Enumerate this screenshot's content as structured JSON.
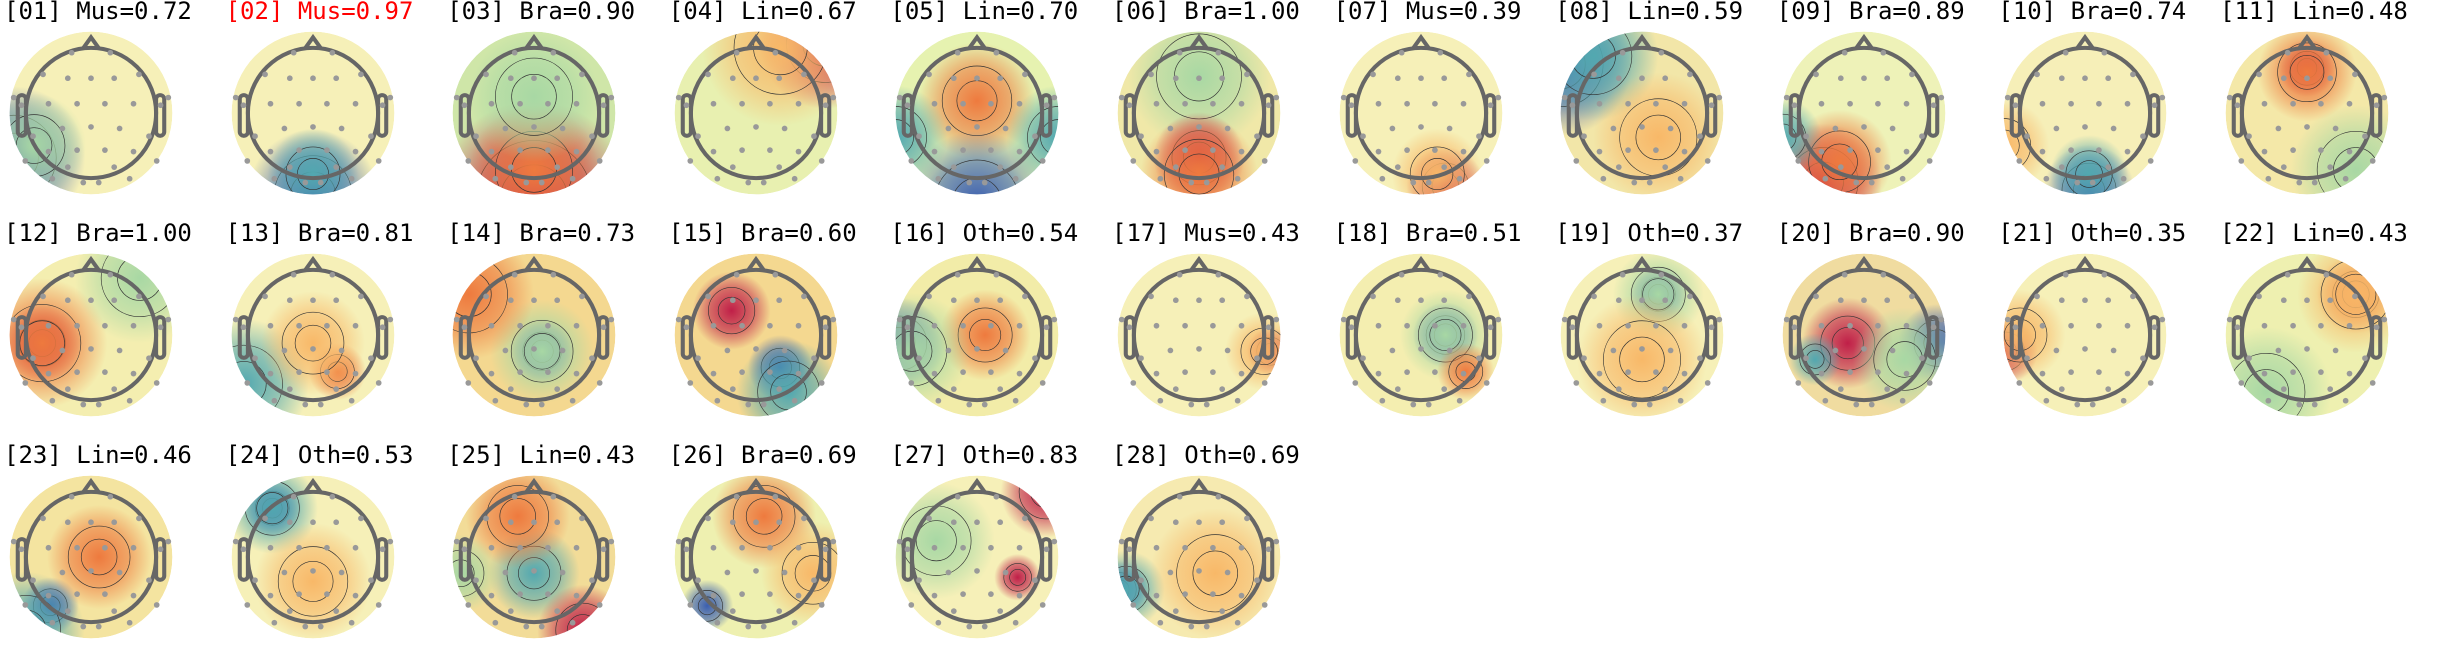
{
  "highlight_color": "#ff0000",
  "colormap": [
    "#3b5fb0",
    "#52a8b0",
    "#a8d8a4",
    "#f6f6b8",
    "#f8c878",
    "#ee7a3e",
    "#c01f48"
  ],
  "components": [
    {
      "label": "[01] Mus=0.72",
      "highlighted": false
    },
    {
      "label": "[02] Mus=0.97",
      "highlighted": true
    },
    {
      "label": "[03] Bra=0.90",
      "highlighted": false
    },
    {
      "label": "[04] Lin=0.67",
      "highlighted": false
    },
    {
      "label": "[05] Lin=0.70",
      "highlighted": false
    },
    {
      "label": "[06] Bra=1.00",
      "highlighted": false
    },
    {
      "label": "[07] Mus=0.39",
      "highlighted": false
    },
    {
      "label": "[08] Lin=0.59",
      "highlighted": false
    },
    {
      "label": "[09] Bra=0.89",
      "highlighted": false
    },
    {
      "label": "[10] Bra=0.74",
      "highlighted": false
    },
    {
      "label": "[11] Lin=0.48",
      "highlighted": false
    },
    {
      "label": "[12] Bra=1.00",
      "highlighted": false
    },
    {
      "label": "[13] Bra=0.81",
      "highlighted": false
    },
    {
      "label": "[14] Bra=0.73",
      "highlighted": false
    },
    {
      "label": "[15] Bra=0.60",
      "highlighted": false
    },
    {
      "label": "[16] Oth=0.54",
      "highlighted": false
    },
    {
      "label": "[17] Mus=0.43",
      "highlighted": false
    },
    {
      "label": "[18] Bra=0.51",
      "highlighted": false
    },
    {
      "label": "[19] Oth=0.37",
      "highlighted": false
    },
    {
      "label": "[20] Bra=0.90",
      "highlighted": false
    },
    {
      "label": "[21] Oth=0.35",
      "highlighted": false
    },
    {
      "label": "[22] Lin=0.43",
      "highlighted": false
    },
    {
      "label": "[23] Lin=0.46",
      "highlighted": false
    },
    {
      "label": "[24] Oth=0.53",
      "highlighted": false
    },
    {
      "label": "[25] Lin=0.43",
      "highlighted": false
    },
    {
      "label": "[26] Bra=0.69",
      "highlighted": false
    },
    {
      "label": "[27] Oth=0.83",
      "highlighted": false
    },
    {
      "label": "[28] Oth=0.69",
      "highlighted": false
    }
  ]
}
